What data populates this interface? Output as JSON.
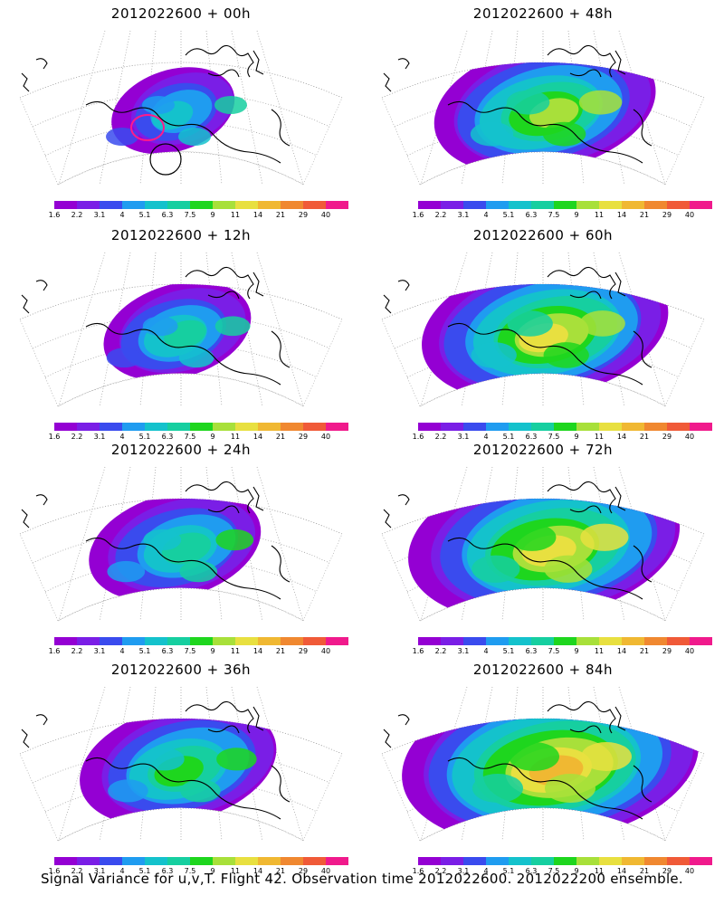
{
  "panels": [
    {
      "title": "2012022600 + 00h",
      "lead": 0
    },
    {
      "title": "2012022600 + 48h",
      "lead": 48
    },
    {
      "title": "2012022600 + 12h",
      "lead": 12
    },
    {
      "title": "2012022600 + 60h",
      "lead": 60
    },
    {
      "title": "2012022600 + 24h",
      "lead": 24
    },
    {
      "title": "2012022600 + 72h",
      "lead": 72
    },
    {
      "title": "2012022600 + 36h",
      "lead": 36
    },
    {
      "title": "2012022600 + 84h",
      "lead": 84
    }
  ],
  "colorbar": {
    "levels": [
      "1.6",
      "2.2",
      "3.1",
      "4",
      "5.1",
      "6.3",
      "7.5",
      "9",
      "11",
      "14",
      "21",
      "29",
      "40"
    ],
    "colors": [
      "#9400d3",
      "#7a1ee6",
      "#3a4bee",
      "#1f9cf0",
      "#14c2cc",
      "#16cfa0",
      "#1ed61e",
      "#a8e03a",
      "#e8e040",
      "#f0b832",
      "#f08830",
      "#f05a38",
      "#f01a8c"
    ]
  },
  "caption": "Signal Variance for u,v,T. Flight 42. Observation time 2012022600. 2012022200 ensemble."
}
